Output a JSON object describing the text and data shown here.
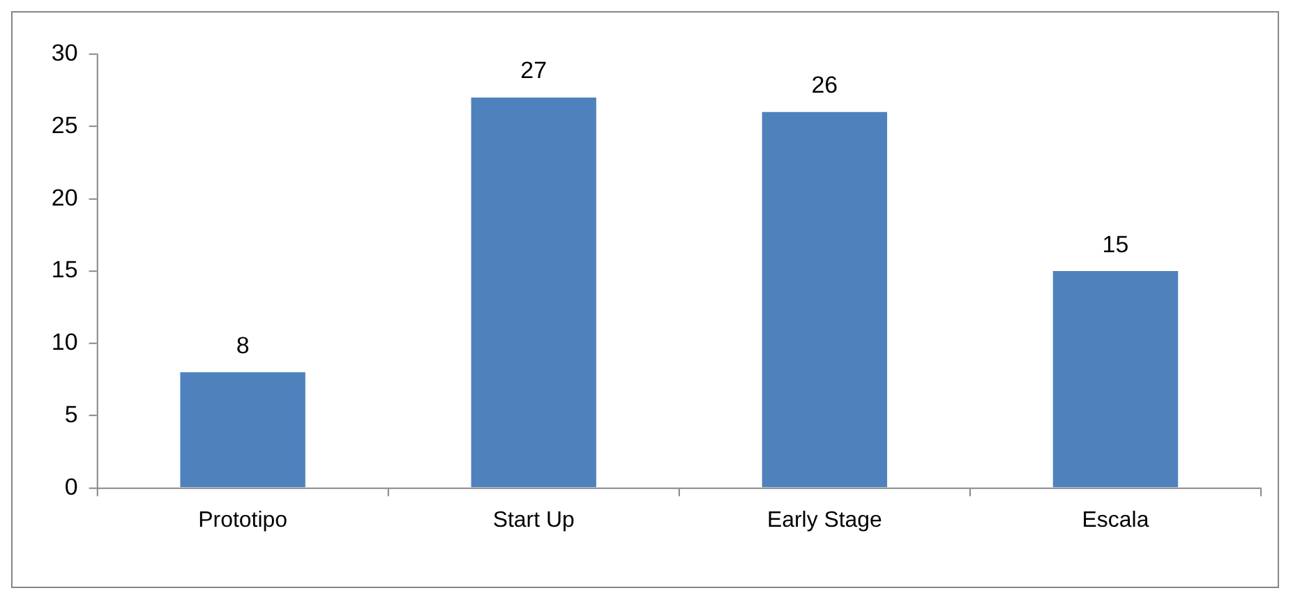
{
  "chart_data": {
    "type": "bar",
    "categories": [
      "Prototipo",
      "Start Up",
      "Early Stage",
      "Escala"
    ],
    "values": [
      8,
      27,
      26,
      15
    ],
    "color": "#4f81bd",
    "ylim": [
      0,
      30
    ],
    "yticks": [
      0,
      5,
      10,
      15,
      20,
      25,
      30
    ],
    "grid": false,
    "legend": false,
    "data_labels": true
  }
}
